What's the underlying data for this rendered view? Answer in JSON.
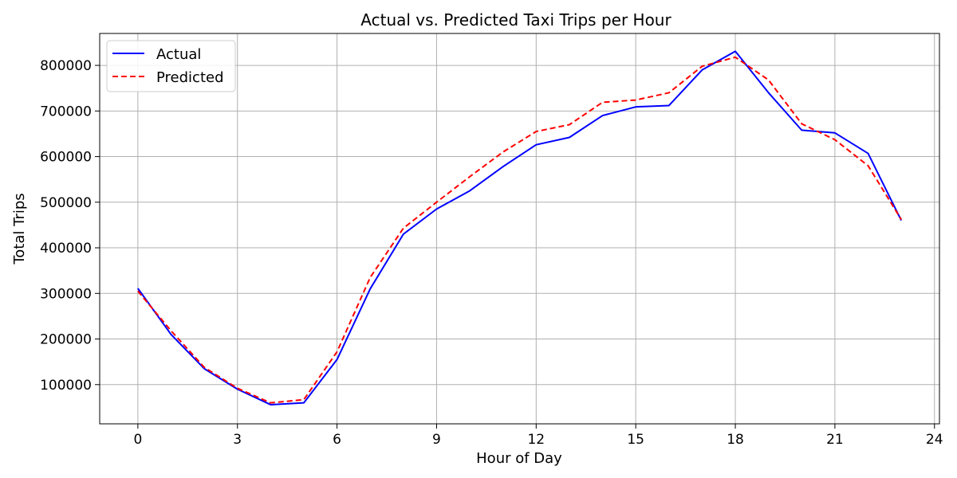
{
  "chart_data": {
    "type": "line",
    "title": "Actual vs. Predicted Taxi Trips per Hour",
    "xlabel": "Hour of Day",
    "ylabel": "Total Trips",
    "x": [
      0,
      1,
      2,
      3,
      4,
      5,
      6,
      7,
      8,
      9,
      10,
      11,
      12,
      13,
      14,
      15,
      16,
      17,
      18,
      19,
      20,
      21,
      22,
      23
    ],
    "series": [
      {
        "name": "Actual",
        "color": "#0000ff",
        "dash": "solid",
        "values": [
          311000,
          210000,
          135000,
          90000,
          56000,
          60000,
          155000,
          310000,
          430000,
          485000,
          525000,
          578000,
          626000,
          642000,
          690000,
          709000,
          712000,
          790000,
          831000,
          740000,
          658000,
          652000,
          607000,
          460000
        ]
      },
      {
        "name": "Predicted",
        "color": "#ff0000",
        "dash": "dashed",
        "values": [
          305000,
          218000,
          138000,
          92000,
          60000,
          67000,
          172000,
          335000,
          443000,
          500000,
          556000,
          610000,
          655000,
          670000,
          719000,
          724000,
          740000,
          798000,
          818000,
          768000,
          672000,
          637000,
          580000,
          462000
        ]
      }
    ],
    "xlim": [
      -1.15,
      24.15
    ],
    "ylim": [
      14000,
      870000
    ],
    "xticks": [
      0,
      3,
      6,
      9,
      12,
      15,
      18,
      21,
      24
    ],
    "yticks": [
      100000,
      200000,
      300000,
      400000,
      500000,
      600000,
      700000,
      800000
    ],
    "grid": true,
    "legend_position": "top-left"
  }
}
